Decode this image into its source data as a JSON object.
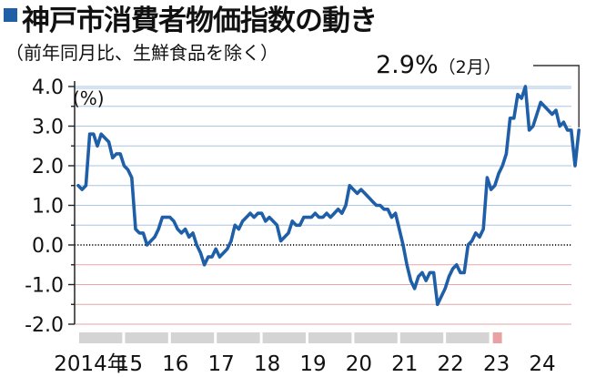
{
  "chart_data": {
    "type": "line",
    "title": "神戸市消費者物価指数の動き",
    "subtitle": "（前年同月比、生鮮食品を除く）",
    "ylabel": "(%)",
    "ylim": [
      -2.0,
      4.0
    ],
    "yticks": [
      "4.0",
      "3.0",
      "2.0",
      "1.0",
      "0.0",
      "-1.0",
      "-2.0"
    ],
    "xticks": [
      "2014年",
      "15",
      "16",
      "17",
      "18",
      "19",
      "20",
      "21",
      "22",
      "23",
      "24"
    ],
    "annotation": {
      "value": "2.9%",
      "note": "（2月）"
    },
    "grid": true,
    "colors": {
      "line": "#1f5fa8",
      "positive_grid": "#a9c6e4",
      "negative_grid": "#e5a7a9",
      "year_bar": "#d4d4d4",
      "current_bar": "#e8a2a4"
    },
    "series": [
      {
        "start": "2014-01",
        "values": [
          1.5,
          1.4,
          1.5,
          2.8,
          2.8,
          2.5,
          2.8,
          2.7,
          2.6,
          2.2,
          2.3,
          2.3,
          2.0,
          1.9,
          1.7,
          0.4,
          0.3,
          0.3,
          0.0,
          0.1,
          0.2,
          0.4,
          0.7,
          0.7,
          0.7,
          0.6,
          0.4,
          0.3,
          0.4,
          0.2,
          0.3,
          0.0,
          -0.2,
          -0.5,
          -0.3,
          -0.3,
          -0.1,
          -0.3,
          -0.2,
          -0.1,
          0.1,
          0.5,
          0.4,
          0.6,
          0.7,
          0.8,
          0.7,
          0.8,
          0.8,
          0.6,
          0.7,
          0.6,
          0.5,
          0.1,
          0.2,
          0.3,
          0.6,
          0.5,
          0.5,
          0.7,
          0.7,
          0.7,
          0.8,
          0.7,
          0.7,
          0.8,
          0.7,
          0.8,
          0.9,
          0.8,
          1.0,
          1.5,
          1.4,
          1.3,
          1.4,
          1.3,
          1.2,
          1.1,
          1.0,
          1.0,
          0.9,
          0.9,
          0.7,
          0.8,
          0.4,
          0.0,
          -0.5,
          -0.9,
          -1.1,
          -0.8,
          -0.7,
          -0.9,
          -0.7,
          -0.7,
          -1.5,
          -1.3,
          -1.1,
          -0.8,
          -0.6,
          -0.5,
          -0.7,
          -0.7,
          0.0,
          0.1,
          0.3,
          0.2,
          0.4,
          1.7,
          1.4,
          1.5,
          1.8,
          2.0,
          2.3,
          3.2,
          3.2,
          3.8,
          3.7,
          4.0,
          2.9,
          3.0,
          3.3,
          3.6,
          3.5,
          3.4,
          3.3,
          3.4,
          3.0,
          3.1,
          2.9,
          2.9,
          2.0,
          2.9
        ]
      }
    ]
  }
}
